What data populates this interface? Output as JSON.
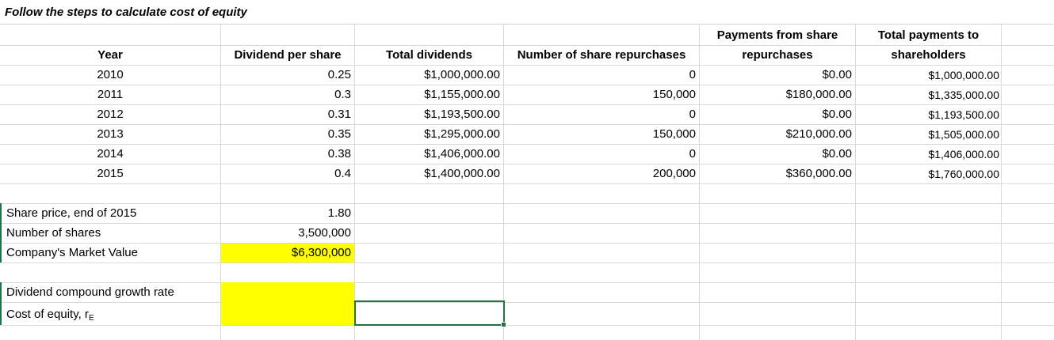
{
  "title": "Follow the steps to calculate cost of equity",
  "headers": {
    "year": "Year",
    "dividend_per_share": "Dividend per share",
    "total_dividends": "Total dividends",
    "num_repurchases": "Number of share repurchases",
    "payments_line1": "Payments from share",
    "payments_line2": "repurchases",
    "total_payments_line1": "Total payments to",
    "total_payments_line2": "shareholders"
  },
  "rows": [
    {
      "year": "2010",
      "dps": "0.25",
      "total_div": "$1,000,000.00",
      "repurch": "0",
      "payments": "$0.00",
      "total_pay": "$1,000,000.00"
    },
    {
      "year": "2011",
      "dps": "0.3",
      "total_div": "$1,155,000.00",
      "repurch": "150,000",
      "payments": "$180,000.00",
      "total_pay": "$1,335,000.00"
    },
    {
      "year": "2012",
      "dps": "0.31",
      "total_div": "$1,193,500.00",
      "repurch": "0",
      "payments": "$0.00",
      "total_pay": "$1,193,500.00"
    },
    {
      "year": "2013",
      "dps": "0.35",
      "total_div": "$1,295,000.00",
      "repurch": "150,000",
      "payments": "$210,000.00",
      "total_pay": "$1,505,000.00"
    },
    {
      "year": "2014",
      "dps": "0.38",
      "total_div": "$1,406,000.00",
      "repurch": "0",
      "payments": "$0.00",
      "total_pay": "$1,406,000.00"
    },
    {
      "year": "2015",
      "dps": "0.4",
      "total_div": "$1,400,000.00",
      "repurch": "200,000",
      "payments": "$360,000.00",
      "total_pay": "$1,760,000.00"
    }
  ],
  "market": {
    "share_price_label": "Share price, end of 2015",
    "share_price_value": "1.80",
    "num_shares_label": "Number of shares",
    "num_shares_value": "3,500,000",
    "market_value_label": "Company's Market Value",
    "market_value_value": "$6,300,000"
  },
  "equity": {
    "growth_label": "Dividend compound growth rate",
    "cost_label": "Cost of equity, r",
    "cost_label_sub": "E"
  },
  "colors": {
    "highlight": "#ffff00",
    "selection": "#217346",
    "gridline": "#d9d9d9"
  }
}
